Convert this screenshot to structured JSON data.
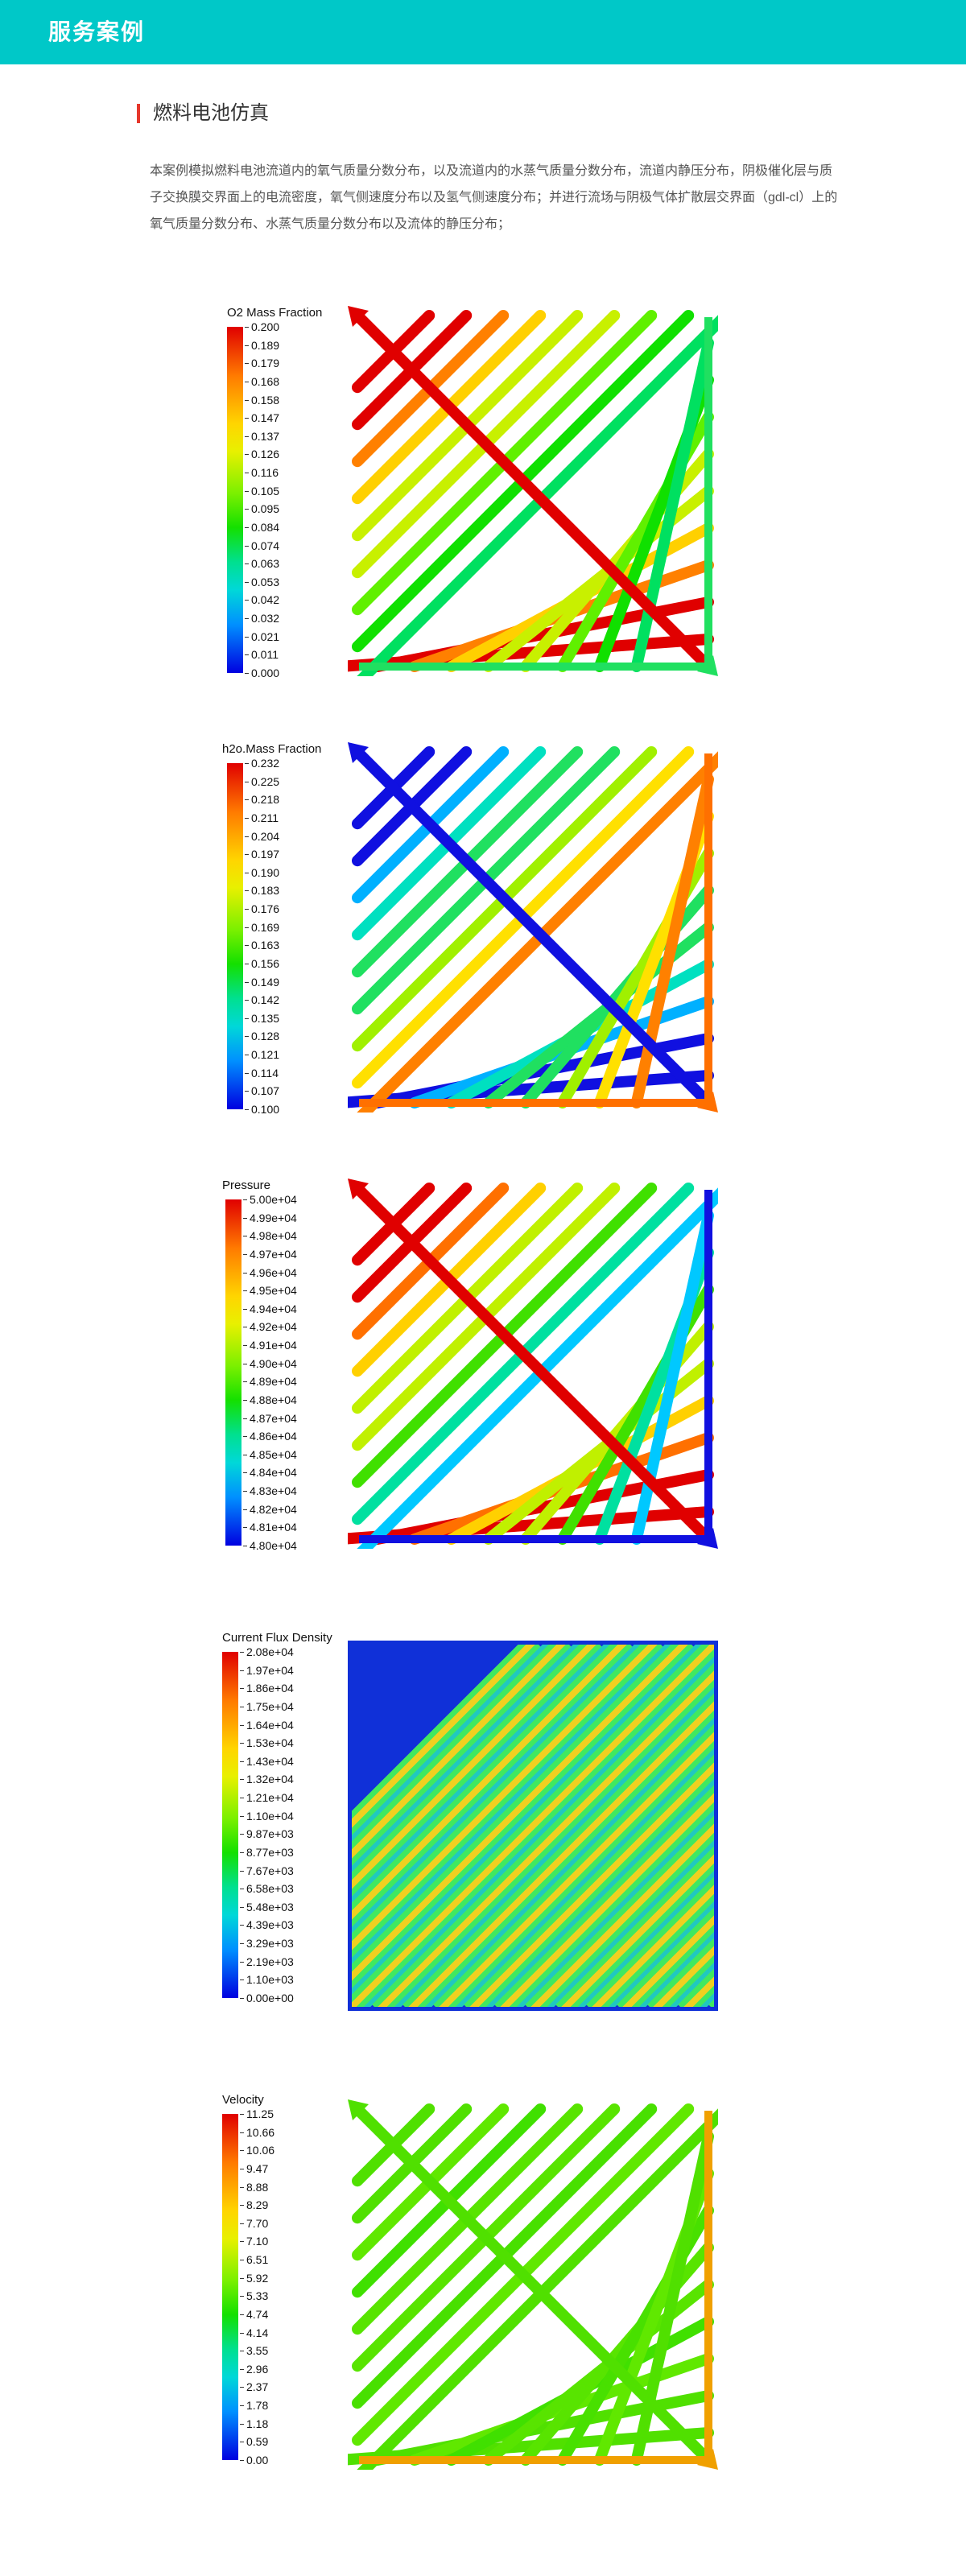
{
  "header": {
    "title": "服务案例"
  },
  "section": {
    "title": "燃料电池仿真",
    "description": "本案例模拟燃料电池流道内的氧气质量分数分布，以及流道内的水蒸气质量分数分布，流道内静压分布，阴极催化层与质子交换膜交界面上的电流密度，氧气侧速度分布以及氢气侧速度分布；并进行流场与阴极气体扩散层交界面（gdl-cl）上的氧气质量分数分布、水蒸气质量分数分布以及流体的静压分布；"
  },
  "colors": {
    "header_bg": "#00c8c8",
    "accent": "#e6382c"
  },
  "panels": [
    {
      "legend_title": "O2 Mass Fraction",
      "ticks": [
        "0.200",
        "0.189",
        "0.179",
        "0.168",
        "0.158",
        "0.147",
        "0.137",
        "0.126",
        "0.116",
        "0.105",
        "0.095",
        "0.084",
        "0.074",
        "0.063",
        "0.053",
        "0.042",
        "0.032",
        "0.021",
        "0.011",
        "0.000"
      ]
    },
    {
      "legend_title": "h2o.Mass Fraction",
      "ticks": [
        "0.232",
        "0.225",
        "0.218",
        "0.211",
        "0.204",
        "0.197",
        "0.190",
        "0.183",
        "0.176",
        "0.169",
        "0.163",
        "0.156",
        "0.149",
        "0.142",
        "0.135",
        "0.128",
        "0.121",
        "0.114",
        "0.107",
        "0.100"
      ]
    },
    {
      "legend_title": "Pressure",
      "ticks": [
        "5.00e+04",
        "4.99e+04",
        "4.98e+04",
        "4.97e+04",
        "4.96e+04",
        "4.95e+04",
        "4.94e+04",
        "4.92e+04",
        "4.91e+04",
        "4.90e+04",
        "4.89e+04",
        "4.88e+04",
        "4.87e+04",
        "4.86e+04",
        "4.85e+04",
        "4.84e+04",
        "4.83e+04",
        "4.82e+04",
        "4.81e+04",
        "4.80e+04"
      ]
    },
    {
      "legend_title": "Current Flux Density",
      "ticks": [
        "2.08e+04",
        "1.97e+04",
        "1.86e+04",
        "1.75e+04",
        "1.64e+04",
        "1.53e+04",
        "1.43e+04",
        "1.32e+04",
        "1.21e+04",
        "1.10e+04",
        "9.87e+03",
        "8.77e+03",
        "7.67e+03",
        "6.58e+03",
        "5.48e+03",
        "4.39e+03",
        "3.29e+03",
        "2.19e+03",
        "1.10e+03",
        "0.00e+00"
      ]
    },
    {
      "legend_title": "Velocity",
      "ticks": [
        "11.25",
        "10.66",
        "10.06",
        "9.47",
        "8.88",
        "8.29",
        "7.70",
        "7.10",
        "6.51",
        "5.92",
        "5.33",
        "4.74",
        "4.14",
        "3.55",
        "2.96",
        "2.37",
        "1.78",
        "1.18",
        "0.59",
        "0.00"
      ]
    }
  ]
}
